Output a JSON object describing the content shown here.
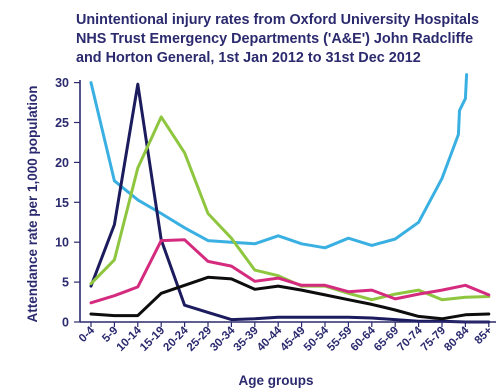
{
  "chart_data": {
    "type": "line",
    "title_lines": [
      "Unintentional injury rates from Oxford University Hospitals",
      "NHS Trust Emergency Departments ('A&E') John Radcliffe",
      "and Horton General, 1st Jan 2012 to 31st Dec 2012"
    ],
    "xlabel": "Age groups",
    "ylabel": "Attendance rate per 1,000 population",
    "ylim": [
      0,
      30
    ],
    "yticks": [
      0,
      5,
      10,
      15,
      20,
      25,
      30
    ],
    "categories": [
      "0-4",
      "5-9",
      "10-14",
      "15-19",
      "20-24",
      "25-29",
      "30-34",
      "35-39",
      "40-44",
      "45-49",
      "50-54",
      "55-59",
      "60-64",
      "65-69",
      "70-74",
      "75-79",
      "80-84",
      "85+"
    ],
    "legend": "none",
    "grid": false,
    "series": [
      {
        "color": "#3ab0e2",
        "points": [
          [
            0,
            30
          ],
          [
            1,
            17.7
          ],
          [
            2,
            15.3
          ],
          [
            3,
            13.6
          ],
          [
            4,
            11.8
          ],
          [
            5,
            10.2
          ],
          [
            6,
            10
          ],
          [
            7,
            9.8
          ],
          [
            8,
            10.8
          ],
          [
            9,
            9.8
          ],
          [
            10,
            9.3
          ],
          [
            11,
            10.5
          ],
          [
            12,
            9.6
          ],
          [
            13,
            10.4
          ],
          [
            14,
            12.5
          ],
          [
            15,
            18
          ],
          [
            15.7,
            23.5
          ],
          [
            15.75,
            26.5
          ],
          [
            16.0,
            28
          ],
          [
            16.05,
            31
          ]
        ]
      },
      {
        "color": "#1c1b5e",
        "points": [
          [
            0,
            4.5
          ],
          [
            1,
            12.2
          ],
          [
            2,
            29.8
          ],
          [
            3,
            10.3
          ],
          [
            4,
            2.1
          ],
          [
            5,
            1.2
          ],
          [
            6,
            0.3
          ],
          [
            7,
            0.4
          ],
          [
            8,
            0.6
          ],
          [
            9,
            0.6
          ],
          [
            10,
            0.6
          ],
          [
            11,
            0.6
          ],
          [
            12,
            0.5
          ],
          [
            13,
            0.3
          ],
          [
            14,
            0.1
          ],
          [
            15,
            0.1
          ],
          [
            16,
            0
          ],
          [
            17,
            0
          ]
        ]
      },
      {
        "color": "#8fc63f",
        "points": [
          [
            0,
            4.8
          ],
          [
            1,
            7.8
          ],
          [
            2,
            19.3
          ],
          [
            3,
            25.7
          ],
          [
            4,
            21.2
          ],
          [
            5,
            13.6
          ],
          [
            6,
            10.5
          ],
          [
            7,
            6.5
          ],
          [
            8,
            5.8
          ],
          [
            9,
            4.5
          ],
          [
            10,
            4.5
          ],
          [
            11,
            3.6
          ],
          [
            12,
            2.8
          ],
          [
            13,
            3.5
          ],
          [
            14,
            4
          ],
          [
            15,
            2.8
          ],
          [
            16,
            3.1
          ],
          [
            17,
            3.2
          ]
        ]
      },
      {
        "color": "#d42b7f",
        "points": [
          [
            0,
            2.4
          ],
          [
            1,
            3.3
          ],
          [
            2,
            4.4
          ],
          [
            3,
            10.2
          ],
          [
            4,
            10.3
          ],
          [
            5,
            7.6
          ],
          [
            6,
            7
          ],
          [
            7,
            5.1
          ],
          [
            8,
            5.5
          ],
          [
            9,
            4.6
          ],
          [
            10,
            4.6
          ],
          [
            11,
            3.8
          ],
          [
            12,
            4
          ],
          [
            13,
            2.9
          ],
          [
            14,
            3.5
          ],
          [
            15,
            4
          ],
          [
            16,
            4.6
          ],
          [
            17,
            3.4
          ]
        ]
      },
      {
        "color": "#0d0d0d",
        "points": [
          [
            0,
            1.0
          ],
          [
            1,
            0.8
          ],
          [
            2,
            0.8
          ],
          [
            3,
            3.6
          ],
          [
            4,
            4.6
          ],
          [
            5,
            5.6
          ],
          [
            6,
            5.4
          ],
          [
            7,
            4.1
          ],
          [
            8,
            4.5
          ],
          [
            9,
            4
          ],
          [
            10,
            3.4
          ],
          [
            11,
            2.8
          ],
          [
            12,
            2.2
          ],
          [
            13,
            1.5
          ],
          [
            14,
            0.7
          ],
          [
            15,
            0.4
          ],
          [
            16,
            0.9
          ],
          [
            17,
            1.0
          ]
        ]
      }
    ]
  }
}
